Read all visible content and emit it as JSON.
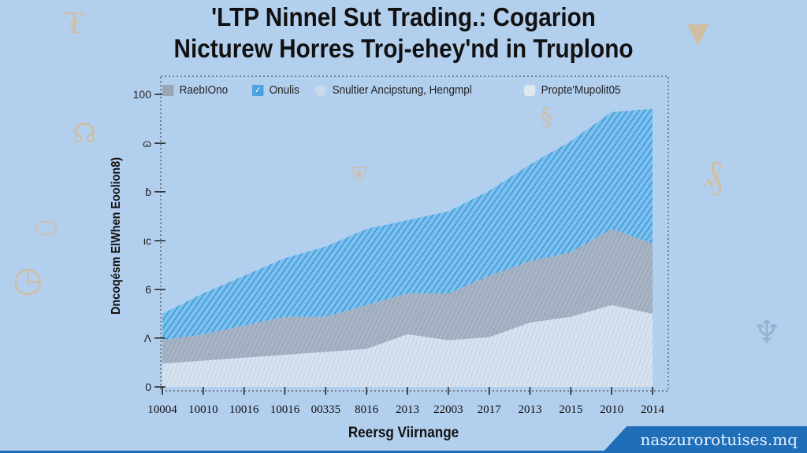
{
  "chart_data": {
    "type": "area",
    "title": [
      "'LTP Ninnel Sut Trading.: Cogarion",
      "Nicturew Horres Troj-ehey'nd in Truplono"
    ],
    "xlabel": "Reersg Viirnange",
    "ylabel": "Dncoqésm ElWhen Eoolion8)",
    "y_ticks": [
      "0",
      "Λ",
      "6",
      "ιc",
      "ɓ",
      "ɷ",
      "100"
    ],
    "y_tick_values": [
      0,
      16.7,
      33.3,
      50,
      66.7,
      83.3,
      100
    ],
    "ylim": [
      0,
      100
    ],
    "x_ticks": [
      "10004",
      "10010",
      "10016",
      "10016",
      "00335",
      "8016",
      "2013",
      "22003",
      "2017",
      "2013",
      "2015",
      "2010",
      "2014"
    ],
    "legend_position": "top",
    "grid": false,
    "legend": [
      {
        "name": "RaebIOno",
        "color": "#9aa6b8",
        "style": "solid"
      },
      {
        "name": "Onulis",
        "color": "#4aa3e0",
        "style": "checked"
      },
      {
        "name": "Snultier Ancipstung, Hengmpl",
        "color": "#c9d9ea",
        "style": "circle"
      },
      {
        "name": "Propte'Mupolit05",
        "color": "#dfe7f1",
        "style": "solid"
      }
    ],
    "x_index": [
      0,
      1,
      2,
      3,
      4,
      5,
      6,
      7,
      8,
      9,
      10,
      11,
      12
    ],
    "series": [
      {
        "name": "Propte'Mupolit05",
        "color": "#dbe6f3",
        "values": [
          8,
          9,
          10,
          11,
          12,
          13,
          18,
          16,
          17,
          22,
          24,
          28,
          25
        ]
      },
      {
        "name": "RaebIOno",
        "color": "#9eaec2",
        "values": [
          8,
          9,
          11,
          13,
          12,
          15,
          14,
          16,
          21,
          21,
          22,
          26,
          24
        ]
      },
      {
        "name": "Onulis",
        "color": "#5aaee6",
        "values": [
          9,
          14,
          17,
          20,
          24,
          26,
          25,
          28,
          29,
          33,
          38,
          40,
          46
        ]
      }
    ]
  },
  "watermark": "naszurorotuises.mq"
}
